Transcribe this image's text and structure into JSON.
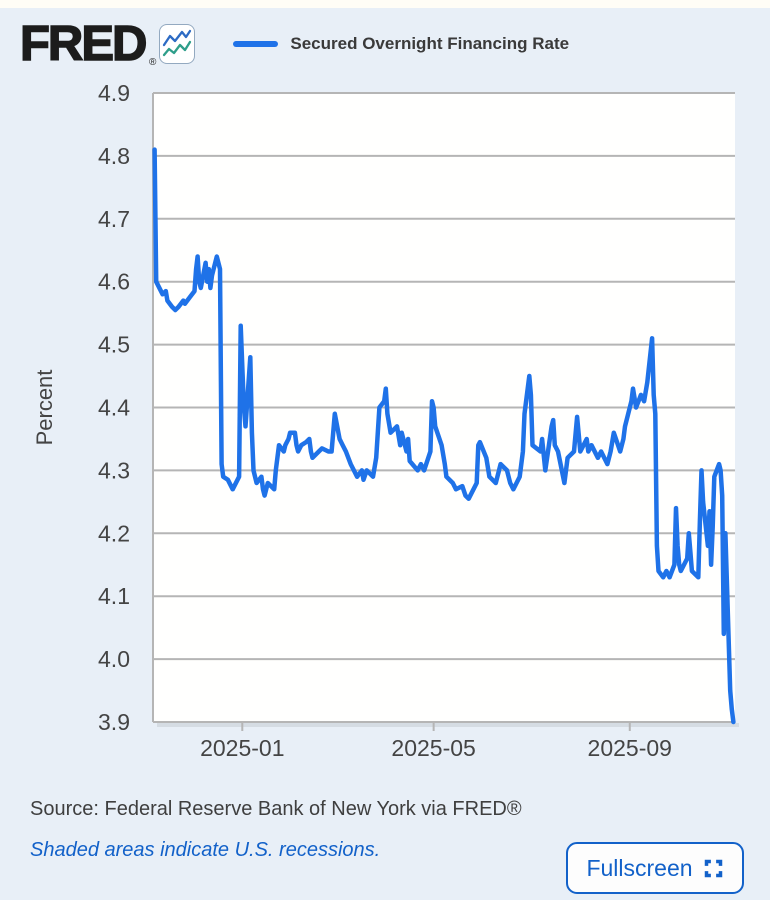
{
  "header": {
    "logo_text": "FRED",
    "registered_mark": "®",
    "legend": {
      "label": "Secured Overnight Financing Rate",
      "swatch_color": "#1f72e8",
      "position": "top-left"
    }
  },
  "chart_data": {
    "type": "line",
    "series_name": "Secured Overnight Financing Rate",
    "title": "",
    "xlabel": "",
    "ylabel": "Percent",
    "ylim": [
      3.9,
      4.9
    ],
    "yticks": [
      "4.9",
      "4.8",
      "4.7",
      "4.6",
      "4.5",
      "4.4",
      "4.3",
      "4.2",
      "4.1",
      "4.0",
      "3.9"
    ],
    "ytick_values": [
      4.9,
      4.8,
      4.7,
      4.6,
      4.5,
      4.4,
      4.3,
      4.2,
      4.1,
      4.0,
      3.9
    ],
    "x_range": [
      "2024-11-06",
      "2025-11-06"
    ],
    "xticks": [
      {
        "date": "2025-01-01",
        "label": "2025-01"
      },
      {
        "date": "2025-05-01",
        "label": "2025-05"
      },
      {
        "date": "2025-09-01",
        "label": "2025-09"
      }
    ],
    "grid": true,
    "line_color": "#1f72e8",
    "points": [
      [
        "2024-11-07",
        4.81
      ],
      [
        "2024-11-08",
        4.6
      ],
      [
        "2024-11-12",
        4.58
      ],
      [
        "2024-11-14",
        4.585
      ],
      [
        "2024-11-15",
        4.57
      ],
      [
        "2024-11-18",
        4.56
      ],
      [
        "2024-11-20",
        4.555
      ],
      [
        "2024-11-22",
        4.56
      ],
      [
        "2024-11-25",
        4.57
      ],
      [
        "2024-11-26",
        4.565
      ],
      [
        "2024-11-29",
        4.575
      ],
      [
        "2024-12-02",
        4.585
      ],
      [
        "2024-12-03",
        4.62
      ],
      [
        "2024-12-04",
        4.64
      ],
      [
        "2024-12-05",
        4.6
      ],
      [
        "2024-12-06",
        4.59
      ],
      [
        "2024-12-09",
        4.63
      ],
      [
        "2024-12-10",
        4.6
      ],
      [
        "2024-12-11",
        4.62
      ],
      [
        "2024-12-12",
        4.59
      ],
      [
        "2024-12-13",
        4.61
      ],
      [
        "2024-12-16",
        4.64
      ],
      [
        "2024-12-17",
        4.63
      ],
      [
        "2024-12-18",
        4.62
      ],
      [
        "2024-12-19",
        4.31
      ],
      [
        "2024-12-20",
        4.29
      ],
      [
        "2024-12-23",
        4.285
      ],
      [
        "2024-12-26",
        4.27
      ],
      [
        "2024-12-30",
        4.29
      ],
      [
        "2024-12-31",
        4.53
      ],
      [
        "2025-01-02",
        4.4
      ],
      [
        "2025-01-03",
        4.37
      ],
      [
        "2025-01-06",
        4.48
      ],
      [
        "2025-01-07",
        4.36
      ],
      [
        "2025-01-08",
        4.3
      ],
      [
        "2025-01-10",
        4.28
      ],
      [
        "2025-01-13",
        4.29
      ],
      [
        "2025-01-14",
        4.27
      ],
      [
        "2025-01-15",
        4.26
      ],
      [
        "2025-01-17",
        4.28
      ],
      [
        "2025-01-21",
        4.27
      ],
      [
        "2025-01-22",
        4.3
      ],
      [
        "2025-01-24",
        4.34
      ],
      [
        "2025-01-27",
        4.33
      ],
      [
        "2025-01-28",
        4.34
      ],
      [
        "2025-01-30",
        4.35
      ],
      [
        "2025-01-31",
        4.36
      ],
      [
        "2025-02-03",
        4.36
      ],
      [
        "2025-02-04",
        4.34
      ],
      [
        "2025-02-05",
        4.33
      ],
      [
        "2025-02-07",
        4.34
      ],
      [
        "2025-02-10",
        4.345
      ],
      [
        "2025-02-12",
        4.35
      ],
      [
        "2025-02-13",
        4.33
      ],
      [
        "2025-02-14",
        4.32
      ],
      [
        "2025-02-18",
        4.33
      ],
      [
        "2025-02-20",
        4.335
      ],
      [
        "2025-02-24",
        4.33
      ],
      [
        "2025-02-26",
        4.33
      ],
      [
        "2025-02-28",
        4.39
      ],
      [
        "2025-03-03",
        4.35
      ],
      [
        "2025-03-05",
        4.34
      ],
      [
        "2025-03-07",
        4.33
      ],
      [
        "2025-03-10",
        4.31
      ],
      [
        "2025-03-12",
        4.3
      ],
      [
        "2025-03-14",
        4.29
      ],
      [
        "2025-03-17",
        4.3
      ],
      [
        "2025-03-18",
        4.285
      ],
      [
        "2025-03-20",
        4.3
      ],
      [
        "2025-03-24",
        4.29
      ],
      [
        "2025-03-26",
        4.32
      ],
      [
        "2025-03-27",
        4.36
      ],
      [
        "2025-03-28",
        4.4
      ],
      [
        "2025-03-31",
        4.41
      ],
      [
        "2025-04-01",
        4.43
      ],
      [
        "2025-04-02",
        4.39
      ],
      [
        "2025-04-04",
        4.36
      ],
      [
        "2025-04-08",
        4.37
      ],
      [
        "2025-04-10",
        4.34
      ],
      [
        "2025-04-11",
        4.36
      ],
      [
        "2025-04-14",
        4.33
      ],
      [
        "2025-04-15",
        4.35
      ],
      [
        "2025-04-16",
        4.315
      ],
      [
        "2025-04-21",
        4.3
      ],
      [
        "2025-04-23",
        4.31
      ],
      [
        "2025-04-25",
        4.3
      ],
      [
        "2025-04-29",
        4.33
      ],
      [
        "2025-04-30",
        4.41
      ],
      [
        "2025-05-01",
        4.4
      ],
      [
        "2025-05-02",
        4.37
      ],
      [
        "2025-05-06",
        4.34
      ],
      [
        "2025-05-08",
        4.31
      ],
      [
        "2025-05-09",
        4.29
      ],
      [
        "2025-05-13",
        4.28
      ],
      [
        "2025-05-15",
        4.27
      ],
      [
        "2025-05-19",
        4.275
      ],
      [
        "2025-05-21",
        4.26
      ],
      [
        "2025-05-23",
        4.255
      ],
      [
        "2025-05-28",
        4.28
      ],
      [
        "2025-05-29",
        4.34
      ],
      [
        "2025-05-30",
        4.345
      ],
      [
        "2025-06-03",
        4.32
      ],
      [
        "2025-06-05",
        4.29
      ],
      [
        "2025-06-09",
        4.28
      ],
      [
        "2025-06-11",
        4.3
      ],
      [
        "2025-06-12",
        4.31
      ],
      [
        "2025-06-16",
        4.3
      ],
      [
        "2025-06-18",
        4.28
      ],
      [
        "2025-06-20",
        4.27
      ],
      [
        "2025-06-24",
        4.29
      ],
      [
        "2025-06-26",
        4.33
      ],
      [
        "2025-06-27",
        4.39
      ],
      [
        "2025-06-30",
        4.45
      ],
      [
        "2025-07-01",
        4.42
      ],
      [
        "2025-07-02",
        4.34
      ],
      [
        "2025-07-07",
        4.33
      ],
      [
        "2025-07-08",
        4.35
      ],
      [
        "2025-07-10",
        4.3
      ],
      [
        "2025-07-14",
        4.37
      ],
      [
        "2025-07-15",
        4.38
      ],
      [
        "2025-07-16",
        4.34
      ],
      [
        "2025-07-18",
        4.33
      ],
      [
        "2025-07-22",
        4.28
      ],
      [
        "2025-07-24",
        4.32
      ],
      [
        "2025-07-28",
        4.33
      ],
      [
        "2025-07-30",
        4.385
      ],
      [
        "2025-08-01",
        4.33
      ],
      [
        "2025-08-05",
        4.35
      ],
      [
        "2025-08-06",
        4.33
      ],
      [
        "2025-08-08",
        4.34
      ],
      [
        "2025-08-12",
        4.32
      ],
      [
        "2025-08-14",
        4.33
      ],
      [
        "2025-08-18",
        4.31
      ],
      [
        "2025-08-20",
        4.33
      ],
      [
        "2025-08-22",
        4.36
      ],
      [
        "2025-08-26",
        4.33
      ],
      [
        "2025-08-28",
        4.35
      ],
      [
        "2025-08-29",
        4.37
      ],
      [
        "2025-09-02",
        4.41
      ],
      [
        "2025-09-03",
        4.43
      ],
      [
        "2025-09-05",
        4.4
      ],
      [
        "2025-09-08",
        4.42
      ],
      [
        "2025-09-10",
        4.41
      ],
      [
        "2025-09-12",
        4.44
      ],
      [
        "2025-09-15",
        4.51
      ],
      [
        "2025-09-16",
        4.42
      ],
      [
        "2025-09-17",
        4.39
      ],
      [
        "2025-09-18",
        4.18
      ],
      [
        "2025-09-19",
        4.14
      ],
      [
        "2025-09-22",
        4.13
      ],
      [
        "2025-09-24",
        4.14
      ],
      [
        "2025-09-26",
        4.13
      ],
      [
        "2025-09-29",
        4.15
      ],
      [
        "2025-09-30",
        4.24
      ],
      [
        "2025-10-01",
        4.18
      ],
      [
        "2025-10-02",
        4.15
      ],
      [
        "2025-10-03",
        4.14
      ],
      [
        "2025-10-07",
        4.16
      ],
      [
        "2025-10-08",
        4.2
      ],
      [
        "2025-10-09",
        4.17
      ],
      [
        "2025-10-10",
        4.14
      ],
      [
        "2025-10-14",
        4.13
      ],
      [
        "2025-10-15",
        4.22
      ],
      [
        "2025-10-16",
        4.3
      ],
      [
        "2025-10-17",
        4.25
      ],
      [
        "2025-10-20",
        4.18
      ],
      [
        "2025-10-21",
        4.235
      ],
      [
        "2025-10-22",
        4.15
      ],
      [
        "2025-10-23",
        4.21
      ],
      [
        "2025-10-24",
        4.29
      ],
      [
        "2025-10-27",
        4.31
      ],
      [
        "2025-10-28",
        4.3
      ],
      [
        "2025-10-29",
        4.26
      ],
      [
        "2025-10-30",
        4.04
      ],
      [
        "2025-10-31",
        4.2
      ],
      [
        "2025-11-03",
        3.95
      ],
      [
        "2025-11-04",
        3.92
      ],
      [
        "2025-11-05",
        3.9
      ]
    ]
  },
  "footer": {
    "source_text": "Source: Federal Reserve Bank of New York via FRED®",
    "recession_note": "Shaded areas indicate U.S. recessions.",
    "fullscreen_label": "Fullscreen"
  }
}
